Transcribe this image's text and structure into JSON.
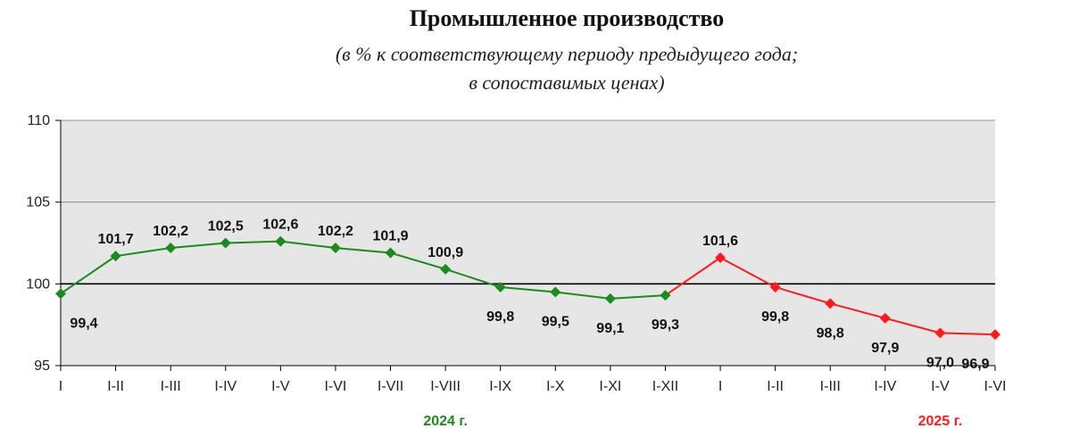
{
  "chart_data": {
    "type": "line",
    "title": "Промышленное производство",
    "subtitle_line1": "(в % к соответствующему периоду предыдущего года;",
    "subtitle_line2": "в сопоставимых ценах)",
    "xlabel": "",
    "ylabel": "",
    "ylim": [
      95,
      110
    ],
    "yticks": [
      95,
      100,
      105,
      110
    ],
    "reference_line": 100,
    "grid": true,
    "categories": [
      "I",
      "I-II",
      "I-III",
      "I-IV",
      "I-V",
      "I-VI",
      "I-VII",
      "I-VIII",
      "I-IX",
      "I-X",
      "I-XI",
      "I-XII",
      "I",
      "I-II",
      "I-III",
      "I-IV",
      "I-V",
      "I-VI"
    ],
    "values": [
      99.4,
      101.7,
      102.2,
      102.5,
      102.6,
      102.2,
      101.9,
      100.9,
      99.8,
      99.5,
      99.1,
      99.3,
      101.6,
      99.8,
      98.8,
      97.9,
      97.0,
      96.9
    ],
    "labels": [
      "99,4",
      "101,7",
      "102,2",
      "102,5",
      "102,6",
      "102,2",
      "101,9",
      "100,9",
      "99,8",
      "99,5",
      "99,1",
      "99,3",
      "101,6",
      "99,8",
      "98,8",
      "97,9",
      "97,0",
      "96,9"
    ],
    "series": [
      {
        "year_label": "2024 г.",
        "color": "#1a8c1a",
        "start": 0,
        "end": 11
      },
      {
        "year_label": "2025 г.",
        "color": "#ff1a1a",
        "start": 12,
        "end": 17
      }
    ],
    "plot_background": "#e6e6e6"
  }
}
